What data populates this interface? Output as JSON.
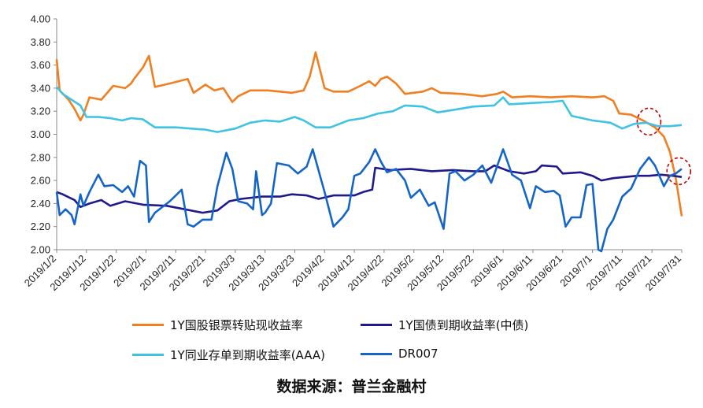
{
  "chart_data": {
    "type": "line",
    "ylim": [
      2.0,
      4.0
    ],
    "y_ticks": [
      "4.00",
      "3.80",
      "3.60",
      "3.40",
      "3.20",
      "3.00",
      "2.80",
      "2.60",
      "2.40",
      "2.20",
      "2.00"
    ],
    "x_ticks": [
      "2019/1/2",
      "2019/1/12",
      "2019/1/22",
      "2019/2/1",
      "2019/2/11",
      "2019/2/21",
      "2019/3/3",
      "2019/3/13",
      "2019/3/23",
      "2019/4/2",
      "2019/4/12",
      "2019/4/22",
      "2019/5/2",
      "2019/5/12",
      "2019/5/22",
      "2019/6/1",
      "2019/6/11",
      "2019/6/21",
      "2019/7/1",
      "2019/7/11",
      "2019/7/21",
      "2019/7/31"
    ],
    "xlim": [
      "2019/1/2",
      "2019/7/31"
    ],
    "grid": false,
    "series": [
      {
        "name": "1Y国股银票转贴现收益率",
        "color": "#F07F21",
        "points": [
          [
            "2019/1/2",
            3.65
          ],
          [
            "2019/1/3",
            3.38
          ],
          [
            "2019/1/6",
            3.3
          ],
          [
            "2019/1/8",
            3.22
          ],
          [
            "2019/1/10",
            3.12
          ],
          [
            "2019/1/11",
            3.17
          ],
          [
            "2019/1/13",
            3.32
          ],
          [
            "2019/1/17",
            3.3
          ],
          [
            "2019/1/21",
            3.42
          ],
          [
            "2019/1/25",
            3.4
          ],
          [
            "2019/1/27",
            3.44
          ],
          [
            "2019/1/28",
            3.48
          ],
          [
            "2019/1/31",
            3.58
          ],
          [
            "2019/2/2",
            3.68
          ],
          [
            "2019/2/4",
            3.41
          ],
          [
            "2019/2/9",
            3.44
          ],
          [
            "2019/2/15",
            3.48
          ],
          [
            "2019/2/17",
            3.36
          ],
          [
            "2019/2/21",
            3.43
          ],
          [
            "2019/2/24",
            3.38
          ],
          [
            "2019/2/27",
            3.4
          ],
          [
            "2019/3/2",
            3.28
          ],
          [
            "2019/3/4",
            3.33
          ],
          [
            "2019/3/8",
            3.38
          ],
          [
            "2019/3/14",
            3.38
          ],
          [
            "2019/3/18",
            3.37
          ],
          [
            "2019/3/22",
            3.36
          ],
          [
            "2019/3/26",
            3.38
          ],
          [
            "2019/3/28",
            3.5
          ],
          [
            "2019/3/30",
            3.71
          ],
          [
            "2019/4/2",
            3.4
          ],
          [
            "2019/4/5",
            3.37
          ],
          [
            "2019/4/10",
            3.37
          ],
          [
            "2019/4/14",
            3.42
          ],
          [
            "2019/4/17",
            3.46
          ],
          [
            "2019/4/19",
            3.42
          ],
          [
            "2019/4/21",
            3.48
          ],
          [
            "2019/4/23",
            3.5
          ],
          [
            "2019/4/26",
            3.44
          ],
          [
            "2019/4/29",
            3.35
          ],
          [
            "2019/5/5",
            3.37
          ],
          [
            "2019/5/8",
            3.4
          ],
          [
            "2019/5/11",
            3.36
          ],
          [
            "2019/5/18",
            3.35
          ],
          [
            "2019/5/25",
            3.33
          ],
          [
            "2019/5/30",
            3.35
          ],
          [
            "2019/6/1",
            3.37
          ],
          [
            "2019/6/4",
            3.32
          ],
          [
            "2019/6/10",
            3.33
          ],
          [
            "2019/6/17",
            3.32
          ],
          [
            "2019/6/24",
            3.33
          ],
          [
            "2019/7/1",
            3.32
          ],
          [
            "2019/7/5",
            3.33
          ],
          [
            "2019/7/8",
            3.29
          ],
          [
            "2019/7/10",
            3.18
          ],
          [
            "2019/7/14",
            3.17
          ],
          [
            "2019/7/18",
            3.12
          ],
          [
            "2019/7/22",
            3.06
          ],
          [
            "2019/7/25",
            2.98
          ],
          [
            "2019/7/27",
            2.85
          ],
          [
            "2019/7/29",
            2.62
          ],
          [
            "2019/7/31",
            2.29
          ]
        ]
      },
      {
        "name": "1Y国债到期收益率(中债)",
        "color": "#1F1A8C",
        "points": [
          [
            "2019/1/2",
            2.5
          ],
          [
            "2019/1/4",
            2.48
          ],
          [
            "2019/1/8",
            2.43
          ],
          [
            "2019/1/10",
            2.37
          ],
          [
            "2019/1/13",
            2.4
          ],
          [
            "2019/1/17",
            2.43
          ],
          [
            "2019/1/20",
            2.38
          ],
          [
            "2019/1/25",
            2.42
          ],
          [
            "2019/1/31",
            2.39
          ],
          [
            "2019/2/8",
            2.38
          ],
          [
            "2019/2/14",
            2.35
          ],
          [
            "2019/2/20",
            2.32
          ],
          [
            "2019/2/25",
            2.34
          ],
          [
            "2019/3/1",
            2.42
          ],
          [
            "2019/3/5",
            2.44
          ],
          [
            "2019/3/12",
            2.46
          ],
          [
            "2019/3/18",
            2.46
          ],
          [
            "2019/3/22",
            2.48
          ],
          [
            "2019/3/27",
            2.47
          ],
          [
            "2019/3/31",
            2.44
          ],
          [
            "2019/4/5",
            2.47
          ],
          [
            "2019/4/12",
            2.47
          ],
          [
            "2019/4/15",
            2.5
          ],
          [
            "2019/4/18",
            2.52
          ],
          [
            "2019/4/19",
            2.71
          ],
          [
            "2019/4/24",
            2.69
          ],
          [
            "2019/5/1",
            2.7
          ],
          [
            "2019/5/8",
            2.68
          ],
          [
            "2019/5/15",
            2.69
          ],
          [
            "2019/5/22",
            2.68
          ],
          [
            "2019/5/26",
            2.68
          ],
          [
            "2019/5/29",
            2.73
          ],
          [
            "2019/6/3",
            2.68
          ],
          [
            "2019/6/8",
            2.66
          ],
          [
            "2019/6/12",
            2.68
          ],
          [
            "2019/6/14",
            2.73
          ],
          [
            "2019/6/19",
            2.72
          ],
          [
            "2019/6/21",
            2.66
          ],
          [
            "2019/6/27",
            2.67
          ],
          [
            "2019/7/1",
            2.64
          ],
          [
            "2019/7/4",
            2.6
          ],
          [
            "2019/7/8",
            2.62
          ],
          [
            "2019/7/12",
            2.63
          ],
          [
            "2019/7/16",
            2.64
          ],
          [
            "2019/7/20",
            2.64
          ],
          [
            "2019/7/24",
            2.65
          ],
          [
            "2019/7/28",
            2.64
          ],
          [
            "2019/7/31",
            2.63
          ]
        ]
      },
      {
        "name": "1Y同业存单到期收益率(AAA)",
        "color": "#3FC3E5",
        "points": [
          [
            "2019/1/2",
            3.41
          ],
          [
            "2019/1/4",
            3.35
          ],
          [
            "2019/1/7",
            3.3
          ],
          [
            "2019/1/10",
            3.25
          ],
          [
            "2019/1/12",
            3.15
          ],
          [
            "2019/1/16",
            3.15
          ],
          [
            "2019/1/20",
            3.14
          ],
          [
            "2019/1/24",
            3.12
          ],
          [
            "2019/1/27",
            3.14
          ],
          [
            "2019/1/31",
            3.13
          ],
          [
            "2019/2/4",
            3.06
          ],
          [
            "2019/2/11",
            3.06
          ],
          [
            "2019/2/16",
            3.05
          ],
          [
            "2019/2/21",
            3.04
          ],
          [
            "2019/2/25",
            3.02
          ],
          [
            "2019/3/3",
            3.05
          ],
          [
            "2019/3/8",
            3.1
          ],
          [
            "2019/3/13",
            3.12
          ],
          [
            "2019/3/18",
            3.11
          ],
          [
            "2019/3/23",
            3.15
          ],
          [
            "2019/3/26",
            3.12
          ],
          [
            "2019/3/30",
            3.06
          ],
          [
            "2019/4/4",
            3.06
          ],
          [
            "2019/4/10",
            3.12
          ],
          [
            "2019/4/15",
            3.14
          ],
          [
            "2019/4/20",
            3.18
          ],
          [
            "2019/4/25",
            3.2
          ],
          [
            "2019/4/29",
            3.25
          ],
          [
            "2019/5/5",
            3.24
          ],
          [
            "2019/5/10",
            3.19
          ],
          [
            "2019/5/15",
            3.21
          ],
          [
            "2019/5/22",
            3.24
          ],
          [
            "2019/5/29",
            3.25
          ],
          [
            "2019/6/1",
            3.32
          ],
          [
            "2019/6/3",
            3.26
          ],
          [
            "2019/6/10",
            3.27
          ],
          [
            "2019/6/17",
            3.28
          ],
          [
            "2019/6/21",
            3.29
          ],
          [
            "2019/6/24",
            3.16
          ],
          [
            "2019/7/1",
            3.12
          ],
          [
            "2019/7/7",
            3.1
          ],
          [
            "2019/7/11",
            3.05
          ],
          [
            "2019/7/15",
            3.09
          ],
          [
            "2019/7/19",
            3.1
          ],
          [
            "2019/7/23",
            3.07
          ],
          [
            "2019/7/27",
            3.07
          ],
          [
            "2019/7/31",
            3.08
          ]
        ]
      },
      {
        "name": "DR007",
        "color": "#1565C9",
        "points": [
          [
            "2019/1/2",
            2.5
          ],
          [
            "2019/1/3",
            2.3
          ],
          [
            "2019/1/5",
            2.35
          ],
          [
            "2019/1/7",
            2.3
          ],
          [
            "2019/1/8",
            2.22
          ],
          [
            "2019/1/10",
            2.48
          ],
          [
            "2019/1/11",
            2.38
          ],
          [
            "2019/1/13",
            2.5
          ],
          [
            "2019/1/16",
            2.65
          ],
          [
            "2019/1/18",
            2.55
          ],
          [
            "2019/1/21",
            2.56
          ],
          [
            "2019/1/24",
            2.5
          ],
          [
            "2019/1/26",
            2.55
          ],
          [
            "2019/1/28",
            2.46
          ],
          [
            "2019/1/30",
            2.77
          ],
          [
            "2019/2/1",
            2.73
          ],
          [
            "2019/2/2",
            2.24
          ],
          [
            "2019/2/4",
            2.32
          ],
          [
            "2019/2/9",
            2.42
          ],
          [
            "2019/2/13",
            2.52
          ],
          [
            "2019/2/15",
            2.22
          ],
          [
            "2019/2/17",
            2.2
          ],
          [
            "2019/2/20",
            2.26
          ],
          [
            "2019/2/23",
            2.26
          ],
          [
            "2019/2/25",
            2.55
          ],
          [
            "2019/2/28",
            2.84
          ],
          [
            "2019/3/2",
            2.7
          ],
          [
            "2019/3/4",
            2.42
          ],
          [
            "2019/3/7",
            2.4
          ],
          [
            "2019/3/9",
            2.35
          ],
          [
            "2019/3/10",
            2.68
          ],
          [
            "2019/3/12",
            2.3
          ],
          [
            "2019/3/13",
            2.32
          ],
          [
            "2019/3/15",
            2.4
          ],
          [
            "2019/3/17",
            2.75
          ],
          [
            "2019/3/21",
            2.73
          ],
          [
            "2019/3/24",
            2.66
          ],
          [
            "2019/3/27",
            2.72
          ],
          [
            "2019/3/29",
            2.87
          ],
          [
            "2019/4/2",
            2.5
          ],
          [
            "2019/4/5",
            2.2
          ],
          [
            "2019/4/8",
            2.28
          ],
          [
            "2019/4/10",
            2.35
          ],
          [
            "2019/4/12",
            2.64
          ],
          [
            "2019/4/14",
            2.66
          ],
          [
            "2019/4/17",
            2.76
          ],
          [
            "2019/4/19",
            2.87
          ],
          [
            "2019/4/21",
            2.76
          ],
          [
            "2019/4/23",
            2.67
          ],
          [
            "2019/4/26",
            2.7
          ],
          [
            "2019/4/29",
            2.6
          ],
          [
            "2019/5/1",
            2.45
          ],
          [
            "2019/5/4",
            2.52
          ],
          [
            "2019/5/7",
            2.38
          ],
          [
            "2019/5/9",
            2.41
          ],
          [
            "2019/5/12",
            2.18
          ],
          [
            "2019/5/14",
            2.66
          ],
          [
            "2019/5/16",
            2.68
          ],
          [
            "2019/5/19",
            2.6
          ],
          [
            "2019/5/22",
            2.65
          ],
          [
            "2019/5/25",
            2.73
          ],
          [
            "2019/5/28",
            2.58
          ],
          [
            "2019/6/1",
            2.87
          ],
          [
            "2019/6/4",
            2.65
          ],
          [
            "2019/6/7",
            2.6
          ],
          [
            "2019/6/10",
            2.36
          ],
          [
            "2019/6/12",
            2.55
          ],
          [
            "2019/6/15",
            2.5
          ],
          [
            "2019/6/18",
            2.51
          ],
          [
            "2019/6/20",
            2.47
          ],
          [
            "2019/6/22",
            2.2
          ],
          [
            "2019/6/24",
            2.28
          ],
          [
            "2019/6/27",
            2.28
          ],
          [
            "2019/6/29",
            2.56
          ],
          [
            "2019/7/1",
            2.57
          ],
          [
            "2019/7/3",
            2.0
          ],
          [
            "2019/7/4",
            1.98
          ],
          [
            "2019/7/6",
            2.18
          ],
          [
            "2019/7/8",
            2.26
          ],
          [
            "2019/7/11",
            2.46
          ],
          [
            "2019/7/14",
            2.53
          ],
          [
            "2019/7/17",
            2.7
          ],
          [
            "2019/7/20",
            2.8
          ],
          [
            "2019/7/22",
            2.73
          ],
          [
            "2019/7/25",
            2.55
          ],
          [
            "2019/7/27",
            2.64
          ],
          [
            "2019/7/29",
            2.66
          ],
          [
            "2019/7/31",
            2.7
          ]
        ]
      }
    ],
    "annotations": [
      {
        "type": "dashed-circle",
        "date": "2019/7/20",
        "value": 3.11,
        "color": "#C00000"
      },
      {
        "type": "dashed-circle",
        "date": "2019/7/30",
        "value": 2.68,
        "color": "#C00000"
      }
    ]
  },
  "source_text": "数据来源：普兰金融村"
}
